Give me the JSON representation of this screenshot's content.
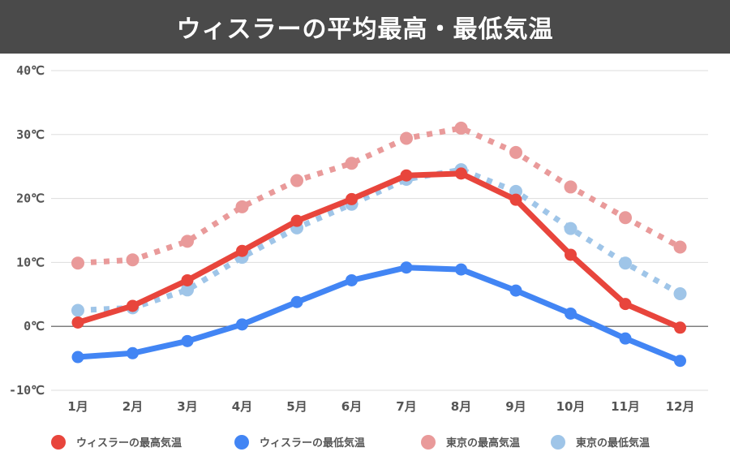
{
  "chart_data": {
    "type": "line",
    "title": "ウィスラーの平均最高・最低気温",
    "categories": [
      "1月",
      "2月",
      "3月",
      "4月",
      "5月",
      "6月",
      "7月",
      "8月",
      "9月",
      "10月",
      "11月",
      "12月"
    ],
    "yticks": [
      "40℃",
      "30℃",
      "20℃",
      "10℃",
      "0℃",
      "-10℃"
    ],
    "ylim": [
      -10,
      40
    ],
    "grid": true,
    "legend_position": "bottom",
    "series": [
      {
        "name": "ウィスラーの最高気温",
        "color": "#e8453c",
        "style": "solid",
        "values": [
          0.6,
          3.2,
          7.2,
          11.8,
          16.5,
          19.9,
          23.6,
          23.9,
          19.8,
          11.2,
          3.5,
          -0.2
        ]
      },
      {
        "name": "ウィスラーの最低気温",
        "color": "#4285f4",
        "style": "solid",
        "values": [
          -4.8,
          -4.2,
          -2.3,
          0.3,
          3.8,
          7.2,
          9.2,
          8.9,
          5.6,
          2.0,
          -1.9,
          -5.4
        ]
      },
      {
        "name": "東京の最高気温",
        "color": "#e99a9a",
        "style": "dotted",
        "values": [
          9.9,
          10.4,
          13.3,
          18.7,
          22.8,
          25.5,
          29.4,
          31.0,
          27.2,
          21.8,
          17.0,
          12.4
        ]
      },
      {
        "name": "東京の最低気温",
        "color": "#9fc5e8",
        "style": "dotted",
        "values": [
          2.5,
          2.9,
          5.7,
          10.8,
          15.4,
          19.1,
          23.0,
          24.5,
          21.1,
          15.3,
          9.9,
          5.1
        ]
      }
    ]
  }
}
